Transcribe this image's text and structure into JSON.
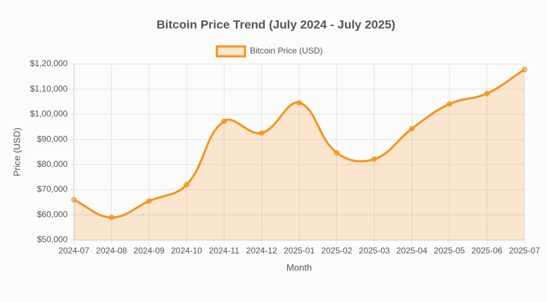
{
  "chart_data": {
    "type": "line",
    "title": "Bitcoin Price Trend (July 2024 - July 2025)",
    "x_label": "Month",
    "y_label": "Price (USD)",
    "categories": [
      "2024-07",
      "2024-08",
      "2024-09",
      "2024-10",
      "2024-11",
      "2024-12",
      "2025-01",
      "2025-02",
      "2025-03",
      "2025-04",
      "2025-05",
      "2025-06",
      "2025-07"
    ],
    "series": [
      {
        "name": "Bitcoin Price (USD)",
        "color": "#f7931a",
        "fill": "rgba(247,147,26,0.2)",
        "values": [
          66000,
          59000,
          65500,
          72000,
          97300,
          92600,
          104600,
          84700,
          82200,
          94300,
          104100,
          108300,
          117800
        ]
      }
    ],
    "ylim": [
      50000,
      120000
    ],
    "yticks": [
      {
        "value": 50000,
        "label": "$50,000"
      },
      {
        "value": 60000,
        "label": "$60,000"
      },
      {
        "value": 70000,
        "label": "$70,000"
      },
      {
        "value": 80000,
        "label": "$80,000"
      },
      {
        "value": 90000,
        "label": "$90,000"
      },
      {
        "value": 100000,
        "label": "$1,00,000"
      },
      {
        "value": 110000,
        "label": "$1,10,000"
      },
      {
        "value": 120000,
        "label": "$1,20,000"
      }
    ],
    "grid": true,
    "legend": "top"
  }
}
